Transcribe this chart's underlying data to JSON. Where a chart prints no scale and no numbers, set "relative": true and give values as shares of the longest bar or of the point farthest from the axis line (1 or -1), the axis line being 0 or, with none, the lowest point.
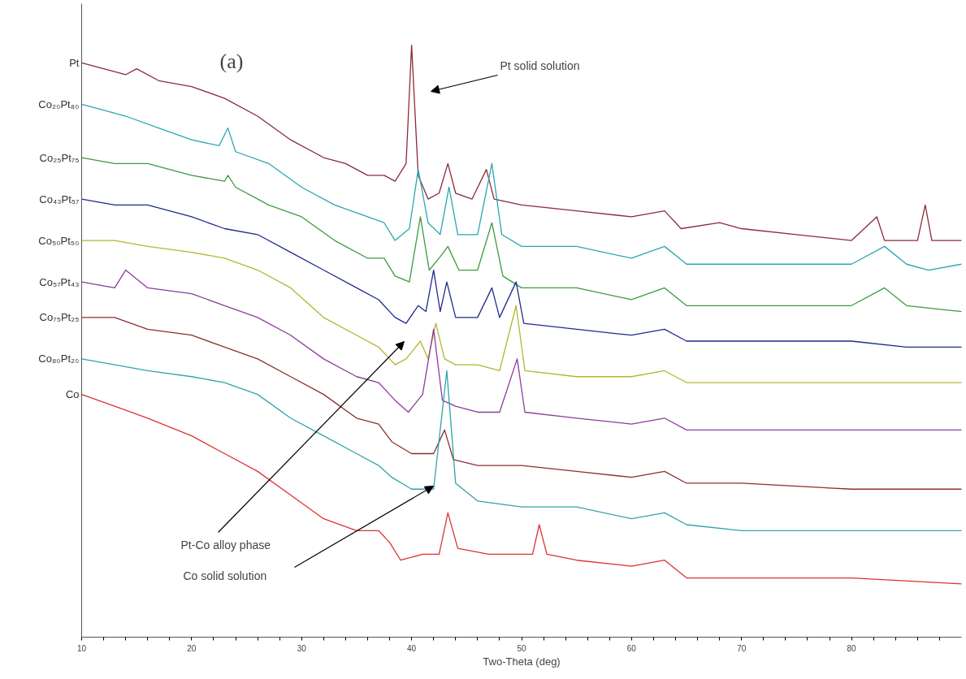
{
  "chart_data": {
    "type": "line",
    "relative": true,
    "legend": "left",
    "xlabel": "Two-Theta (deg)",
    "xlim": [
      10,
      90
    ],
    "xticks": [
      10,
      {
        "value": 12,
        "label": null
      },
      {
        "value": 14,
        "label": null
      },
      {
        "value": 16,
        "label": null
      },
      {
        "value": 18,
        "label": null
      },
      20,
      {
        "value": 22,
        "label": null
      },
      {
        "value": 24,
        "label": null
      },
      {
        "value": 26,
        "label": null
      },
      {
        "value": 28,
        "label": null
      },
      30,
      {
        "value": 32,
        "label": null
      },
      {
        "value": 34,
        "label": null
      },
      {
        "value": 36,
        "label": null
      },
      {
        "value": 38,
        "label": null
      },
      40,
      {
        "value": 42,
        "label": null
      },
      {
        "value": 44,
        "label": null
      },
      {
        "value": 46,
        "label": null
      },
      {
        "value": 48,
        "label": null
      },
      50,
      {
        "value": 52,
        "label": null
      },
      {
        "value": 54,
        "label": null
      },
      {
        "value": 56,
        "label": null
      },
      {
        "value": 58,
        "label": null
      },
      60,
      {
        "value": 62,
        "label": null
      },
      {
        "value": 64,
        "label": null
      },
      {
        "value": 66,
        "label": null
      },
      {
        "value": 68,
        "label": null
      },
      70,
      {
        "value": 72,
        "label": null
      },
      {
        "value": 74,
        "label": null
      },
      {
        "value": 76,
        "label": null
      },
      {
        "value": 78,
        "label": null
      },
      80,
      {
        "value": 82,
        "label": null
      },
      {
        "value": 84,
        "label": null
      },
      {
        "value": 86,
        "label": null
      },
      {
        "value": 88,
        "label": null
      }
    ],
    "annotations": [
      "(a)",
      "Pt solid solution",
      "Pt-Co alloy phase",
      "Co solid solution"
    ],
    "series": [
      {
        "name": "Pt",
        "color": "#8b2a3a",
        "x": [
          10,
          12,
          14,
          15,
          17,
          20,
          23,
          26,
          29,
          32,
          34,
          36,
          37.5,
          38.5,
          39.5,
          40,
          40.6,
          41.5,
          42.5,
          43.3,
          44,
          45.5,
          46.8,
          47.5,
          50,
          55,
          60,
          63,
          64.5,
          68,
          70,
          75,
          80,
          82.3,
          83,
          86,
          86.7,
          87.3,
          90
        ],
        "values": [
          0.97,
          0.96,
          0.95,
          0.96,
          0.94,
          0.93,
          0.91,
          0.88,
          0.84,
          0.81,
          0.8,
          0.78,
          0.78,
          0.77,
          0.8,
          1.0,
          0.78,
          0.74,
          0.75,
          0.8,
          0.75,
          0.74,
          0.79,
          0.74,
          0.73,
          0.72,
          0.71,
          0.72,
          0.69,
          0.7,
          0.69,
          0.68,
          0.67,
          0.71,
          0.67,
          0.67,
          0.73,
          0.67,
          0.67
        ]
      },
      {
        "name": "Co₂₀Pt₈₀",
        "color": "#2aa7b0",
        "x": [
          10,
          12,
          14,
          17,
          20,
          22.5,
          23.3,
          24,
          27,
          30,
          33,
          36,
          37.5,
          38.5,
          39.8,
          40.6,
          41.5,
          42.6,
          43.4,
          44.2,
          46,
          47.3,
          48.2,
          50,
          55,
          60,
          63,
          65,
          70,
          75,
          80,
          83,
          85,
          87,
          90
        ],
        "values": [
          0.9,
          0.89,
          0.88,
          0.86,
          0.84,
          0.83,
          0.86,
          0.82,
          0.8,
          0.76,
          0.73,
          0.71,
          0.7,
          0.67,
          0.69,
          0.79,
          0.7,
          0.68,
          0.76,
          0.68,
          0.68,
          0.8,
          0.68,
          0.66,
          0.66,
          0.64,
          0.66,
          0.63,
          0.63,
          0.63,
          0.63,
          0.66,
          0.63,
          0.62,
          0.63
        ]
      },
      {
        "name": "Co₂₅Pt₇₅",
        "color": "#3d9a3d",
        "x": [
          10,
          13,
          16,
          20,
          23,
          23.3,
          24,
          27,
          30,
          33,
          36,
          37.5,
          38.5,
          39.8,
          40.8,
          41.6,
          42.5,
          43.3,
          44.3,
          46,
          47.3,
          48.3,
          50,
          55,
          60,
          63,
          65,
          70,
          75,
          80,
          83,
          85,
          90
        ],
        "values": [
          0.81,
          0.8,
          0.8,
          0.78,
          0.77,
          0.78,
          0.76,
          0.73,
          0.71,
          0.67,
          0.64,
          0.64,
          0.61,
          0.6,
          0.71,
          0.62,
          0.64,
          0.66,
          0.62,
          0.62,
          0.7,
          0.61,
          0.59,
          0.59,
          0.57,
          0.59,
          0.56,
          0.56,
          0.56,
          0.56,
          0.59,
          0.56,
          0.55
        ]
      },
      {
        "name": "Co₄₃Pt₅₇",
        "color": "#1f2a8c",
        "x": [
          10,
          13,
          16,
          20,
          23,
          26,
          29,
          32,
          35,
          37,
          38.5,
          39.5,
          40.6,
          41.3,
          42,
          42.6,
          43.2,
          44,
          46,
          47.3,
          48,
          49.5,
          50.2,
          55,
          60,
          63,
          65,
          70,
          75,
          80,
          85,
          90
        ],
        "values": [
          0.74,
          0.73,
          0.73,
          0.71,
          0.69,
          0.68,
          0.65,
          0.62,
          0.59,
          0.57,
          0.54,
          0.53,
          0.56,
          0.55,
          0.62,
          0.55,
          0.6,
          0.54,
          0.54,
          0.59,
          0.54,
          0.6,
          0.53,
          0.52,
          0.51,
          0.52,
          0.5,
          0.5,
          0.5,
          0.5,
          0.49,
          0.49
        ]
      },
      {
        "name": "Co₅₀Pt₅₀",
        "color": "#b5b530",
        "x": [
          10,
          13,
          16,
          20,
          23,
          26,
          29,
          32,
          35,
          37,
          38.5,
          39.5,
          40.8,
          41.5,
          42.2,
          43,
          44,
          46,
          48,
          49.5,
          50.3,
          55,
          60,
          63,
          65,
          70,
          75,
          80,
          85,
          90
        ],
        "values": [
          0.67,
          0.67,
          0.66,
          0.65,
          0.64,
          0.62,
          0.59,
          0.54,
          0.51,
          0.49,
          0.46,
          0.47,
          0.5,
          0.47,
          0.53,
          0.47,
          0.46,
          0.46,
          0.45,
          0.56,
          0.45,
          0.44,
          0.44,
          0.45,
          0.43,
          0.43,
          0.43,
          0.43,
          0.43,
          0.43
        ]
      },
      {
        "name": "Co₅₇Pt₄₃",
        "color": "#8c3c9c",
        "x": [
          10,
          13,
          14,
          16,
          20,
          23,
          26,
          29,
          32,
          35,
          37,
          38.5,
          39.7,
          41,
          42,
          42.8,
          44,
          46,
          48,
          49.6,
          50.3,
          55,
          60,
          63,
          65,
          70,
          80,
          90
        ],
        "values": [
          0.6,
          0.59,
          0.62,
          0.59,
          0.58,
          0.56,
          0.54,
          0.51,
          0.47,
          0.44,
          0.43,
          0.4,
          0.38,
          0.41,
          0.52,
          0.4,
          0.39,
          0.38,
          0.38,
          0.47,
          0.38,
          0.37,
          0.36,
          0.37,
          0.35,
          0.35,
          0.35,
          0.35
        ]
      },
      {
        "name": "Co₇₅Pt₂₅",
        "color": "#8b2f2f",
        "x": [
          10,
          13,
          16,
          20,
          23,
          26,
          29,
          32,
          35,
          37,
          38.2,
          40,
          42,
          43,
          43.8,
          46,
          50,
          55,
          60,
          63,
          65,
          70,
          80,
          90
        ],
        "values": [
          0.54,
          0.54,
          0.52,
          0.51,
          0.49,
          0.47,
          0.44,
          0.41,
          0.37,
          0.36,
          0.33,
          0.31,
          0.31,
          0.35,
          0.3,
          0.29,
          0.29,
          0.28,
          0.27,
          0.28,
          0.26,
          0.26,
          0.25,
          0.25
        ]
      },
      {
        "name": "Co₈₀Pt₂₀",
        "color": "#30a4a8",
        "x": [
          10,
          13,
          16,
          20,
          23,
          26,
          29,
          32,
          35,
          37,
          38.2,
          40,
          42,
          43.2,
          44,
          46,
          50,
          55,
          60,
          63,
          65,
          70,
          80,
          90
        ],
        "values": [
          0.47,
          0.46,
          0.45,
          0.44,
          0.43,
          0.41,
          0.37,
          0.34,
          0.31,
          0.29,
          0.27,
          0.25,
          0.25,
          0.45,
          0.26,
          0.23,
          0.22,
          0.22,
          0.2,
          0.21,
          0.19,
          0.18,
          0.18,
          0.18
        ]
      },
      {
        "name": "Co",
        "color": "#e03030",
        "x": [
          10,
          13,
          16,
          20,
          23,
          26,
          29,
          32,
          35,
          37,
          38,
          39,
          41,
          42.5,
          43.3,
          44.2,
          47,
          51,
          51.6,
          52.3,
          55,
          60,
          63,
          65,
          70,
          80,
          90
        ],
        "values": [
          0.41,
          0.39,
          0.37,
          0.34,
          0.31,
          0.28,
          0.24,
          0.2,
          0.18,
          0.18,
          0.16,
          0.13,
          0.14,
          0.14,
          0.21,
          0.15,
          0.14,
          0.14,
          0.19,
          0.14,
          0.13,
          0.12,
          0.13,
          0.1,
          0.1,
          0.1,
          0.09
        ]
      }
    ]
  }
}
